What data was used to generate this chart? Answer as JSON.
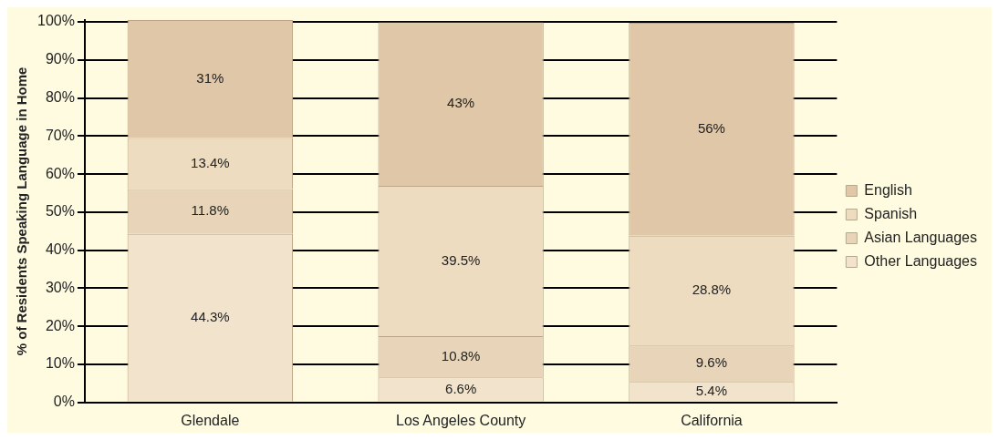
{
  "chart_data": {
    "type": "bar",
    "stacked": true,
    "ylabel": "% of Residents Speaking Language in Home",
    "categories": [
      "Glendale",
      "Los Angeles County",
      "California"
    ],
    "series": [
      {
        "name": "Other Languages",
        "color": "#f2e4cc",
        "values": [
          44.3,
          6.6,
          5.4
        ],
        "value_labels": [
          "44.3%",
          "6.6%",
          "5.4%"
        ]
      },
      {
        "name": "Asian Languages",
        "color": "#e8d5b9",
        "values": [
          11.8,
          10.8,
          9.6
        ],
        "value_labels": [
          "11.8%",
          "10.8%",
          "9.6%"
        ]
      },
      {
        "name": "Spanish",
        "color": "#eedcc0",
        "values": [
          13.4,
          39.5,
          28.8
        ],
        "value_labels": [
          "13.4%",
          "39.5%",
          "28.8%"
        ]
      },
      {
        "name": "English",
        "color": "#dfc7a7",
        "values": [
          31,
          43,
          56
        ],
        "value_labels": [
          "31%",
          "43%",
          "56%"
        ]
      }
    ],
    "ylim": [
      0,
      100.5
    ],
    "yticks": [
      {
        "value": 0,
        "label": "0%"
      },
      {
        "value": 10,
        "label": "10%"
      },
      {
        "value": 20,
        "label": "20%"
      },
      {
        "value": 30,
        "label": "30%"
      },
      {
        "value": 40,
        "label": "40%"
      },
      {
        "value": 50,
        "label": "50%"
      },
      {
        "value": 60,
        "label": "60%"
      },
      {
        "value": 70,
        "label": "70%"
      },
      {
        "value": 80,
        "label": "80%"
      },
      {
        "value": 90,
        "label": "90%"
      },
      {
        "value": 100,
        "label": "100%"
      }
    ],
    "grid": "y",
    "legend": "right"
  }
}
